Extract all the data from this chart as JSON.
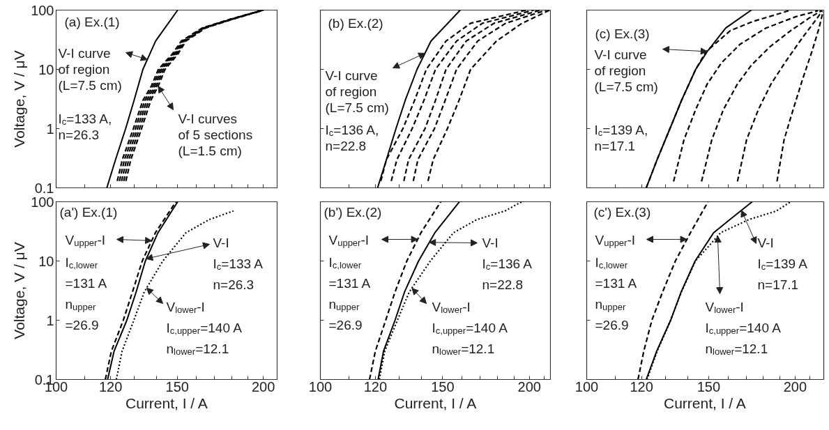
{
  "chart_data": [
    {
      "type": "line",
      "title": "(a) Ex.(1)",
      "ylabel": "Voltage, V / μV",
      "log": "xy",
      "tick_labels": "y",
      "xlim": [
        100,
        210
      ],
      "ylim": [
        0.1,
        100
      ],
      "xticks": [
        100,
        {
          "value": 110,
          "label": null
        },
        120,
        {
          "value": 130,
          "label": null
        },
        {
          "value": 140,
          "label": null
        },
        150,
        {
          "value": 160,
          "label": null
        },
        {
          "value": 170,
          "label": null
        },
        {
          "value": 180,
          "label": null
        },
        {
          "value": 190,
          "label": null
        },
        200
      ],
      "yticks": [
        0.1,
        1,
        10,
        100
      ],
      "annotations": [
        {
          "text": "V-I curve\nof region\n(L=7.5 cm)",
          "x": 135.7,
          "y": 14.6
        },
        "I$_{c}$=133 A,\nn=26.3",
        {
          "text": "V-I curves\nof 5 sections\n(L=1.5 cm)",
          "x": 140.7,
          "y": 5.2
        }
      ],
      "series": [
        {
          "color": "#000000",
          "line_style": "solid",
          "x": [
            118.5,
            122,
            126.2,
            129.8,
            133.7,
            139.5,
            150.2
          ],
          "values": [
            0.1,
            0.3,
            1,
            3,
            10,
            30,
            100
          ]
        },
        {
          "color": "#000000",
          "line_style": "dashed",
          "x": [
            122.7,
            124.8,
            129.5,
            133.7,
            137.5,
            140.8,
            147.5,
            152,
            163,
            178.9,
            199.5
          ],
          "values": [
            0.13,
            0.3,
            1,
            3,
            5.2,
            10,
            18.1,
            30,
            50,
            70,
            100
          ]
        },
        {
          "color": "#000000",
          "line_style": "dashed",
          "x": [
            123.6,
            125.7,
            130.4,
            134.6,
            138.3,
            141.6,
            148.2,
            152.6,
            163.5,
            179.3,
            199.7
          ],
          "values": [
            0.13,
            0.3,
            1,
            3,
            5.2,
            10,
            18.1,
            30,
            50,
            70,
            100
          ]
        },
        {
          "color": "#000000",
          "line_style": "dashed",
          "x": [
            124.5,
            126.6,
            131.3,
            135.5,
            139.1,
            142.4,
            148.9,
            153.2,
            164,
            179.7,
            199.9
          ],
          "values": [
            0.13,
            0.3,
            1,
            3,
            5.2,
            10,
            18.1,
            30,
            50,
            70,
            100
          ]
        },
        {
          "color": "#000000",
          "line_style": "dashed",
          "x": [
            125.4,
            127.5,
            132.2,
            136.4,
            139.9,
            143.2,
            149.6,
            153.8,
            164.5,
            180.1,
            200.1
          ],
          "values": [
            0.13,
            0.3,
            1,
            3,
            5.2,
            10,
            18.1,
            30,
            50,
            70,
            100
          ]
        },
        {
          "color": "#000000",
          "line_style": "dashed",
          "x": [
            126.3,
            128.4,
            133.1,
            137.3,
            140.7,
            144,
            150.3,
            154.4,
            165,
            180.5,
            200.3
          ],
          "values": [
            0.13,
            0.3,
            1,
            3,
            5.2,
            10,
            18.1,
            30,
            50,
            70,
            100
          ]
        }
      ]
    },
    {
      "type": "line",
      "title": "(b) Ex.(2)",
      "log": "xy",
      "tick_labels": false,
      "xlim": [
        100,
        215
      ],
      "ylim": [
        0.1,
        100
      ],
      "xticks": [
        100,
        {
          "value": 110,
          "label": null
        },
        120,
        {
          "value": 130,
          "label": null
        },
        {
          "value": 140,
          "label": null
        },
        150,
        {
          "value": 160,
          "label": null
        },
        {
          "value": 170,
          "label": null
        },
        {
          "value": 180,
          "label": null
        },
        {
          "value": 190,
          "label": null
        },
        200,
        {
          "value": 210,
          "label": null
        }
      ],
      "yticks": [
        0.1,
        1,
        10,
        100
      ],
      "annotations": [
        {
          "text": "V-I curve\nof region\n(L=7.5 cm)",
          "x": 141.5,
          "y": 18.7
        },
        "I$_{c}$=136 A,\nn=22.8"
      ],
      "series": [
        {
          "color": "#000000",
          "line_style": "solid",
          "x": [
            120.9,
            124.5,
            128.5,
            132.5,
            137.8,
            144.3,
            159
          ],
          "values": [
            0.1,
            0.3,
            1,
            3,
            10,
            30,
            100
          ]
        },
        {
          "color": "#000000",
          "line_style": "dashed",
          "x": [
            122.2,
            124.5,
            131.5,
            136.7,
            142.1,
            151.7,
            164.6,
            198
          ],
          "values": [
            0.13,
            0.3,
            1,
            3,
            10,
            30,
            60,
            100
          ]
        },
        {
          "color": "#000000",
          "line_style": "dashed",
          "x": [
            126.5,
            128.9,
            135.6,
            141,
            146.5,
            157.1,
            171.2,
            203
          ],
          "values": [
            0.13,
            0.3,
            1,
            3,
            10,
            30,
            60,
            100
          ]
        },
        {
          "color": "#000000",
          "line_style": "dashed",
          "x": [
            131.9,
            134,
            141.5,
            146.5,
            151.7,
            162.2,
            177.9,
            207.6
          ],
          "values": [
            0.13,
            0.3,
            1,
            3,
            10,
            30,
            60,
            100
          ]
        },
        {
          "color": "#000000",
          "line_style": "dashed",
          "x": [
            136.1,
            138.2,
            146,
            151.3,
            157.1,
            168.5,
            184.9,
            211.5
          ],
          "values": [
            0.13,
            0.3,
            1,
            3,
            10,
            30,
            60,
            100
          ]
        },
        {
          "color": "#000000",
          "line_style": "dashed",
          "x": [
            142.9,
            145.4,
            152.4,
            158.4,
            164.6,
            179.3,
            195.2,
            214
          ],
          "values": [
            0.13,
            0.3,
            1,
            3,
            10,
            30,
            60,
            100
          ]
        }
      ]
    },
    {
      "type": "line",
      "title": "(c) Ex.(3)",
      "log": "xy",
      "tick_labels": false,
      "xlim": [
        100,
        220
      ],
      "ylim": [
        0.1,
        100
      ],
      "xticks": [
        100,
        {
          "value": 110,
          "label": null
        },
        120,
        {
          "value": 130,
          "label": null
        },
        {
          "value": 140,
          "label": null
        },
        150,
        {
          "value": 160,
          "label": null
        },
        {
          "value": 170,
          "label": null
        },
        {
          "value": 180,
          "label": null
        },
        {
          "value": 190,
          "label": null
        },
        200,
        {
          "value": 210,
          "label": null
        }
      ],
      "yticks": [
        0.1,
        1,
        10,
        100
      ],
      "annotations": [
        {
          "text": "V-I curve\nof region\n(L=7.5 cm)",
          "x": 149.3,
          "y": 20
        },
        "I$_{c}$=139 A,\nn=17.1"
      ],
      "series": [
        {
          "color": "#000000",
          "line_style": "solid",
          "x": [
            121.9,
            126.4,
            131.9,
            137.1,
            143.7,
            149.3,
            158.8,
            172.9
          ],
          "values": [
            0.1,
            0.3,
            1,
            3,
            10,
            20,
            50,
            100
          ]
        },
        {
          "color": "#000000",
          "line_style": "dashed",
          "x": [
            121.9,
            126.4,
            131.9,
            137.1,
            143.7,
            148.8,
            161.3,
            174.2,
            188.3,
            197.2
          ],
          "values": [
            0.1,
            0.3,
            1,
            3,
            10,
            20,
            45.2,
            64.9,
            85,
            100
          ]
        },
        {
          "color": "#000000",
          "line_style": "dashed",
          "x": [
            133.5,
            138.2,
            143.7,
            149.3,
            156.5,
            166.4,
            181.3,
            200.5,
            215.8
          ],
          "values": [
            0.128,
            0.648,
            2.1,
            5.66,
            12.8,
            26.3,
            49.4,
            77.6,
            97.3
          ]
        },
        {
          "color": "#000000",
          "line_style": "dashed",
          "x": [
            146.5,
            151.6,
            157.6,
            165.1,
            172.9,
            183.9,
            197.2,
            209.9,
            218.2
          ],
          "values": [
            0.128,
            0.648,
            2.1,
            5.66,
            11.7,
            24,
            45.2,
            74.3,
            97.3
          ]
        },
        {
          "color": "#000000",
          "line_style": "dashed",
          "x": [
            165.1,
            170.2,
            177,
            184.6,
            194.2,
            205,
            214.8,
            219
          ],
          "values": [
            0.128,
            0.648,
            2.1,
            5.66,
            14,
            34.4,
            71,
            97.3
          ]
        },
        {
          "color": "#000000",
          "line_style": "dashed",
          "x": [
            188.3,
            192.8,
            198.7,
            205,
            211.5,
            216.5,
            219
          ],
          "values": [
            0.128,
            0.648,
            2.1,
            6.78,
            20,
            49.4,
            85
          ]
        }
      ]
    },
    {
      "type": "line",
      "title": "(a') Ex.(1)",
      "xlabel": "Current, I / A",
      "ylabel": "Voltage, V / μV",
      "log": "xy",
      "xlim": [
        100,
        210
      ],
      "ylim": [
        0.1,
        100
      ],
      "xticks": [
        100,
        {
          "value": 110,
          "label": null
        },
        120,
        {
          "value": 130,
          "label": null
        },
        {
          "value": 140,
          "label": null
        },
        150,
        {
          "value": 160,
          "label": null
        },
        {
          "value": 170,
          "label": null
        },
        {
          "value": 180,
          "label": null
        },
        {
          "value": 190,
          "label": null
        },
        200
      ],
      "yticks": [
        0.1,
        1,
        10,
        100
      ],
      "annotations": [
        {
          "text": "V$_{upper}$-I",
          "x": 137.7,
          "y": 22
        },
        "I$_{c,lower}$\n=131 A\nn$_{upper}$\n=26.9",
        {
          "text": "V-I\nI$_{c}$=133 A\nn=26.3",
          "x": 135.2,
          "y": 10.9
        },
        {
          "text": "V$_{lower}$-I",
          "x": 135.4,
          "y": 3.5
        },
        "I$_{c,upper}$=140 A\nn$_{lower}$=12.1"
      ],
      "series": [
        {
          "color": "#000000",
          "line_style": "solid",
          "x": [
            118.8,
            121.4,
            126.7,
            130.7,
            134.8,
            140.6,
            150.2
          ],
          "values": [
            0.1,
            0.3,
            1,
            3,
            10,
            30,
            100
          ]
        },
        {
          "color": "#000000",
          "line_style": "dashed",
          "x": [
            117.9,
            120.3,
            125.2,
            129.1,
            133.4,
            139.4,
            149.3
          ],
          "values": [
            0.1,
            0.3,
            1,
            3,
            10,
            30,
            100
          ]
        },
        {
          "color": "#000000",
          "line_style": "dotted",
          "x": [
            122.3,
            124.7,
            129.7,
            134.3,
            142.9,
            154.4,
            166.9,
            181
          ],
          "values": [
            0.1,
            0.3,
            1,
            3,
            10,
            30,
            50,
            70
          ]
        }
      ]
    },
    {
      "type": "line",
      "title": "(b') Ex.(2)",
      "xlabel": "Current, I / A",
      "log": "xy",
      "tick_labels": "x",
      "xlim": [
        100,
        215
      ],
      "ylim": [
        0.1,
        100
      ],
      "xticks": [
        100,
        {
          "value": 110,
          "label": null
        },
        120,
        {
          "value": 130,
          "label": null
        },
        {
          "value": 140,
          "label": null
        },
        150,
        {
          "value": 160,
          "label": null
        },
        {
          "value": 170,
          "label": null
        },
        {
          "value": 180,
          "label": null
        },
        {
          "value": 190,
          "label": null
        },
        200,
        {
          "value": 210,
          "label": null
        }
      ],
      "yticks": [
        0.1,
        1,
        10,
        100
      ],
      "annotations": [
        {
          "text": "V$_{upper}$-I",
          "x": 138.1,
          "y": 23.2
        },
        "I$_{c,lower}$\n=131 A\nn$_{upper}$\n=26.9",
        {
          "text": "V-I\nI$_{c}$=136 A\nn=22.8",
          "x": 143.5,
          "y": 20.6
        },
        {
          "text": "V$_{lower}$-I",
          "x": 135.5,
          "y": 3.47
        },
        "I$_{c,upper}$=140 A\nn$_{lower}$=12.1"
      ],
      "series": [
        {
          "color": "#000000",
          "line_style": "solid",
          "x": [
            121.1,
            123.3,
            128.1,
            132.2,
            138.5,
            146.2,
            158.6
          ],
          "values": [
            0.1,
            0.3,
            1,
            3,
            10,
            30,
            100
          ]
        },
        {
          "color": "#000000",
          "line_style": "dashed",
          "x": [
            117.7,
            120,
            124.2,
            128.1,
            133.2,
            139.6,
            149.1
          ],
          "values": [
            0.1,
            0.3,
            1,
            3,
            10,
            30,
            100
          ]
        },
        {
          "color": "#000000",
          "line_style": "dotted",
          "x": [
            121.6,
            123.8,
            129.1,
            134.3,
            144,
            155.5,
            168,
            184.5,
            195
          ],
          "values": [
            0.1,
            0.3,
            1,
            3,
            10,
            30,
            50,
            70,
            100
          ]
        }
      ]
    },
    {
      "type": "line",
      "title": "(c') Ex.(3)",
      "xlabel": "Current, I / A",
      "log": "xy",
      "tick_labels": "x",
      "xlim": [
        100,
        220
      ],
      "ylim": [
        0.1,
        100
      ],
      "xticks": [
        100,
        {
          "value": 110,
          "label": null
        },
        120,
        {
          "value": 130,
          "label": null
        },
        {
          "value": 140,
          "label": null
        },
        150,
        {
          "value": 160,
          "label": null
        },
        {
          "value": 170,
          "label": null
        },
        {
          "value": 180,
          "label": null
        },
        {
          "value": 190,
          "label": null
        },
        200,
        {
          "value": 210,
          "label": null
        }
      ],
      "yticks": [
        0.1,
        1,
        10,
        100
      ],
      "annotations": [
        {
          "text": "V$_{upper}$-I",
          "x": 139.5,
          "y": 23.2
        },
        "I$_{c,lower}$\n=131 A\nn$_{upper}$\n=26.9",
        {
          "text": "V-I\nI$_{c}$=139 A\nn=17.1",
          "x": 167.3,
          "y": 71.6
        },
        {
          "text": "V$_{lower}$-I",
          "x": 154.6,
          "y": 26.5
        },
        "I$_{c,upper}$=140 A\nn$_{lower}$=12.1"
      ],
      "series": [
        {
          "color": "#000000",
          "line_style": "solid",
          "x": [
            121.9,
            126.2,
            132.2,
            136.9,
            143.4,
            152.5,
            161,
            173.4
          ],
          "values": [
            0.1,
            0.3,
            1,
            3,
            10,
            30,
            50,
            100
          ]
        },
        {
          "color": "#000000",
          "line_style": "dashed",
          "x": [
            118.6,
            120.9,
            124.2,
            128.7,
            134.3,
            141.2,
            149.7
          ],
          "values": [
            0.1,
            0.3,
            1,
            3,
            10,
            30,
            100
          ]
        },
        {
          "color": "#000000",
          "line_style": "dotted",
          "x": [
            122.2,
            126.4,
            132.2,
            137,
            143.6,
            156.1,
            171.5,
            188,
            197
          ],
          "values": [
            0.1,
            0.3,
            1,
            3,
            10,
            30,
            50,
            70,
            100
          ]
        }
      ]
    }
  ]
}
